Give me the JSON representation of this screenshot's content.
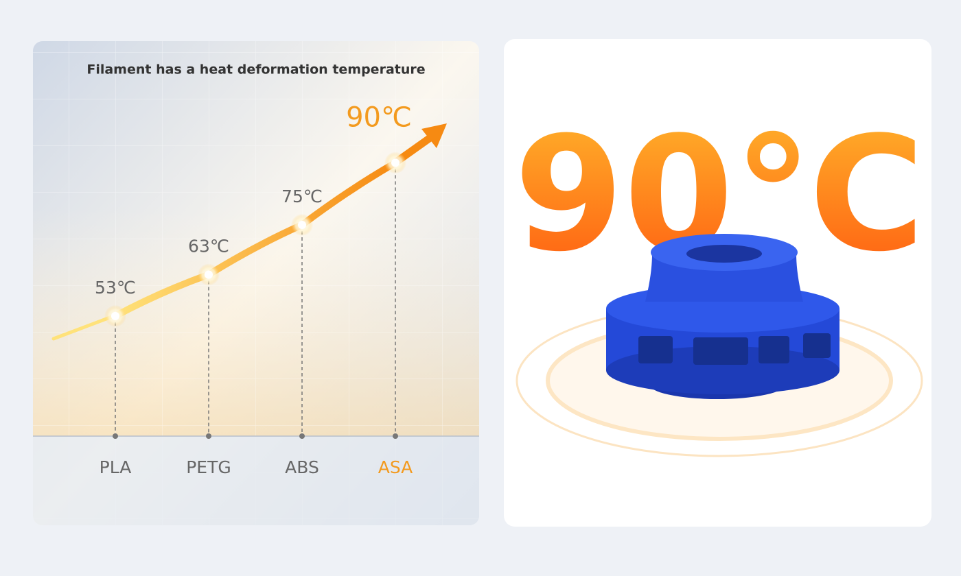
{
  "chart_data": {
    "type": "line",
    "title": "Filament has a heat deformation temperature",
    "categories": [
      "PLA",
      "PETG",
      "ABS",
      "ASA"
    ],
    "values": [
      53,
      63,
      75,
      90
    ],
    "value_labels": [
      "53℃",
      "63℃",
      "75℃",
      "90℃"
    ],
    "color": "#f8a21c",
    "label_colors": [
      "#666666",
      "#666666",
      "#666666",
      "#f39a1e"
    ],
    "ylim": [
      24,
      100
    ]
  }
}
